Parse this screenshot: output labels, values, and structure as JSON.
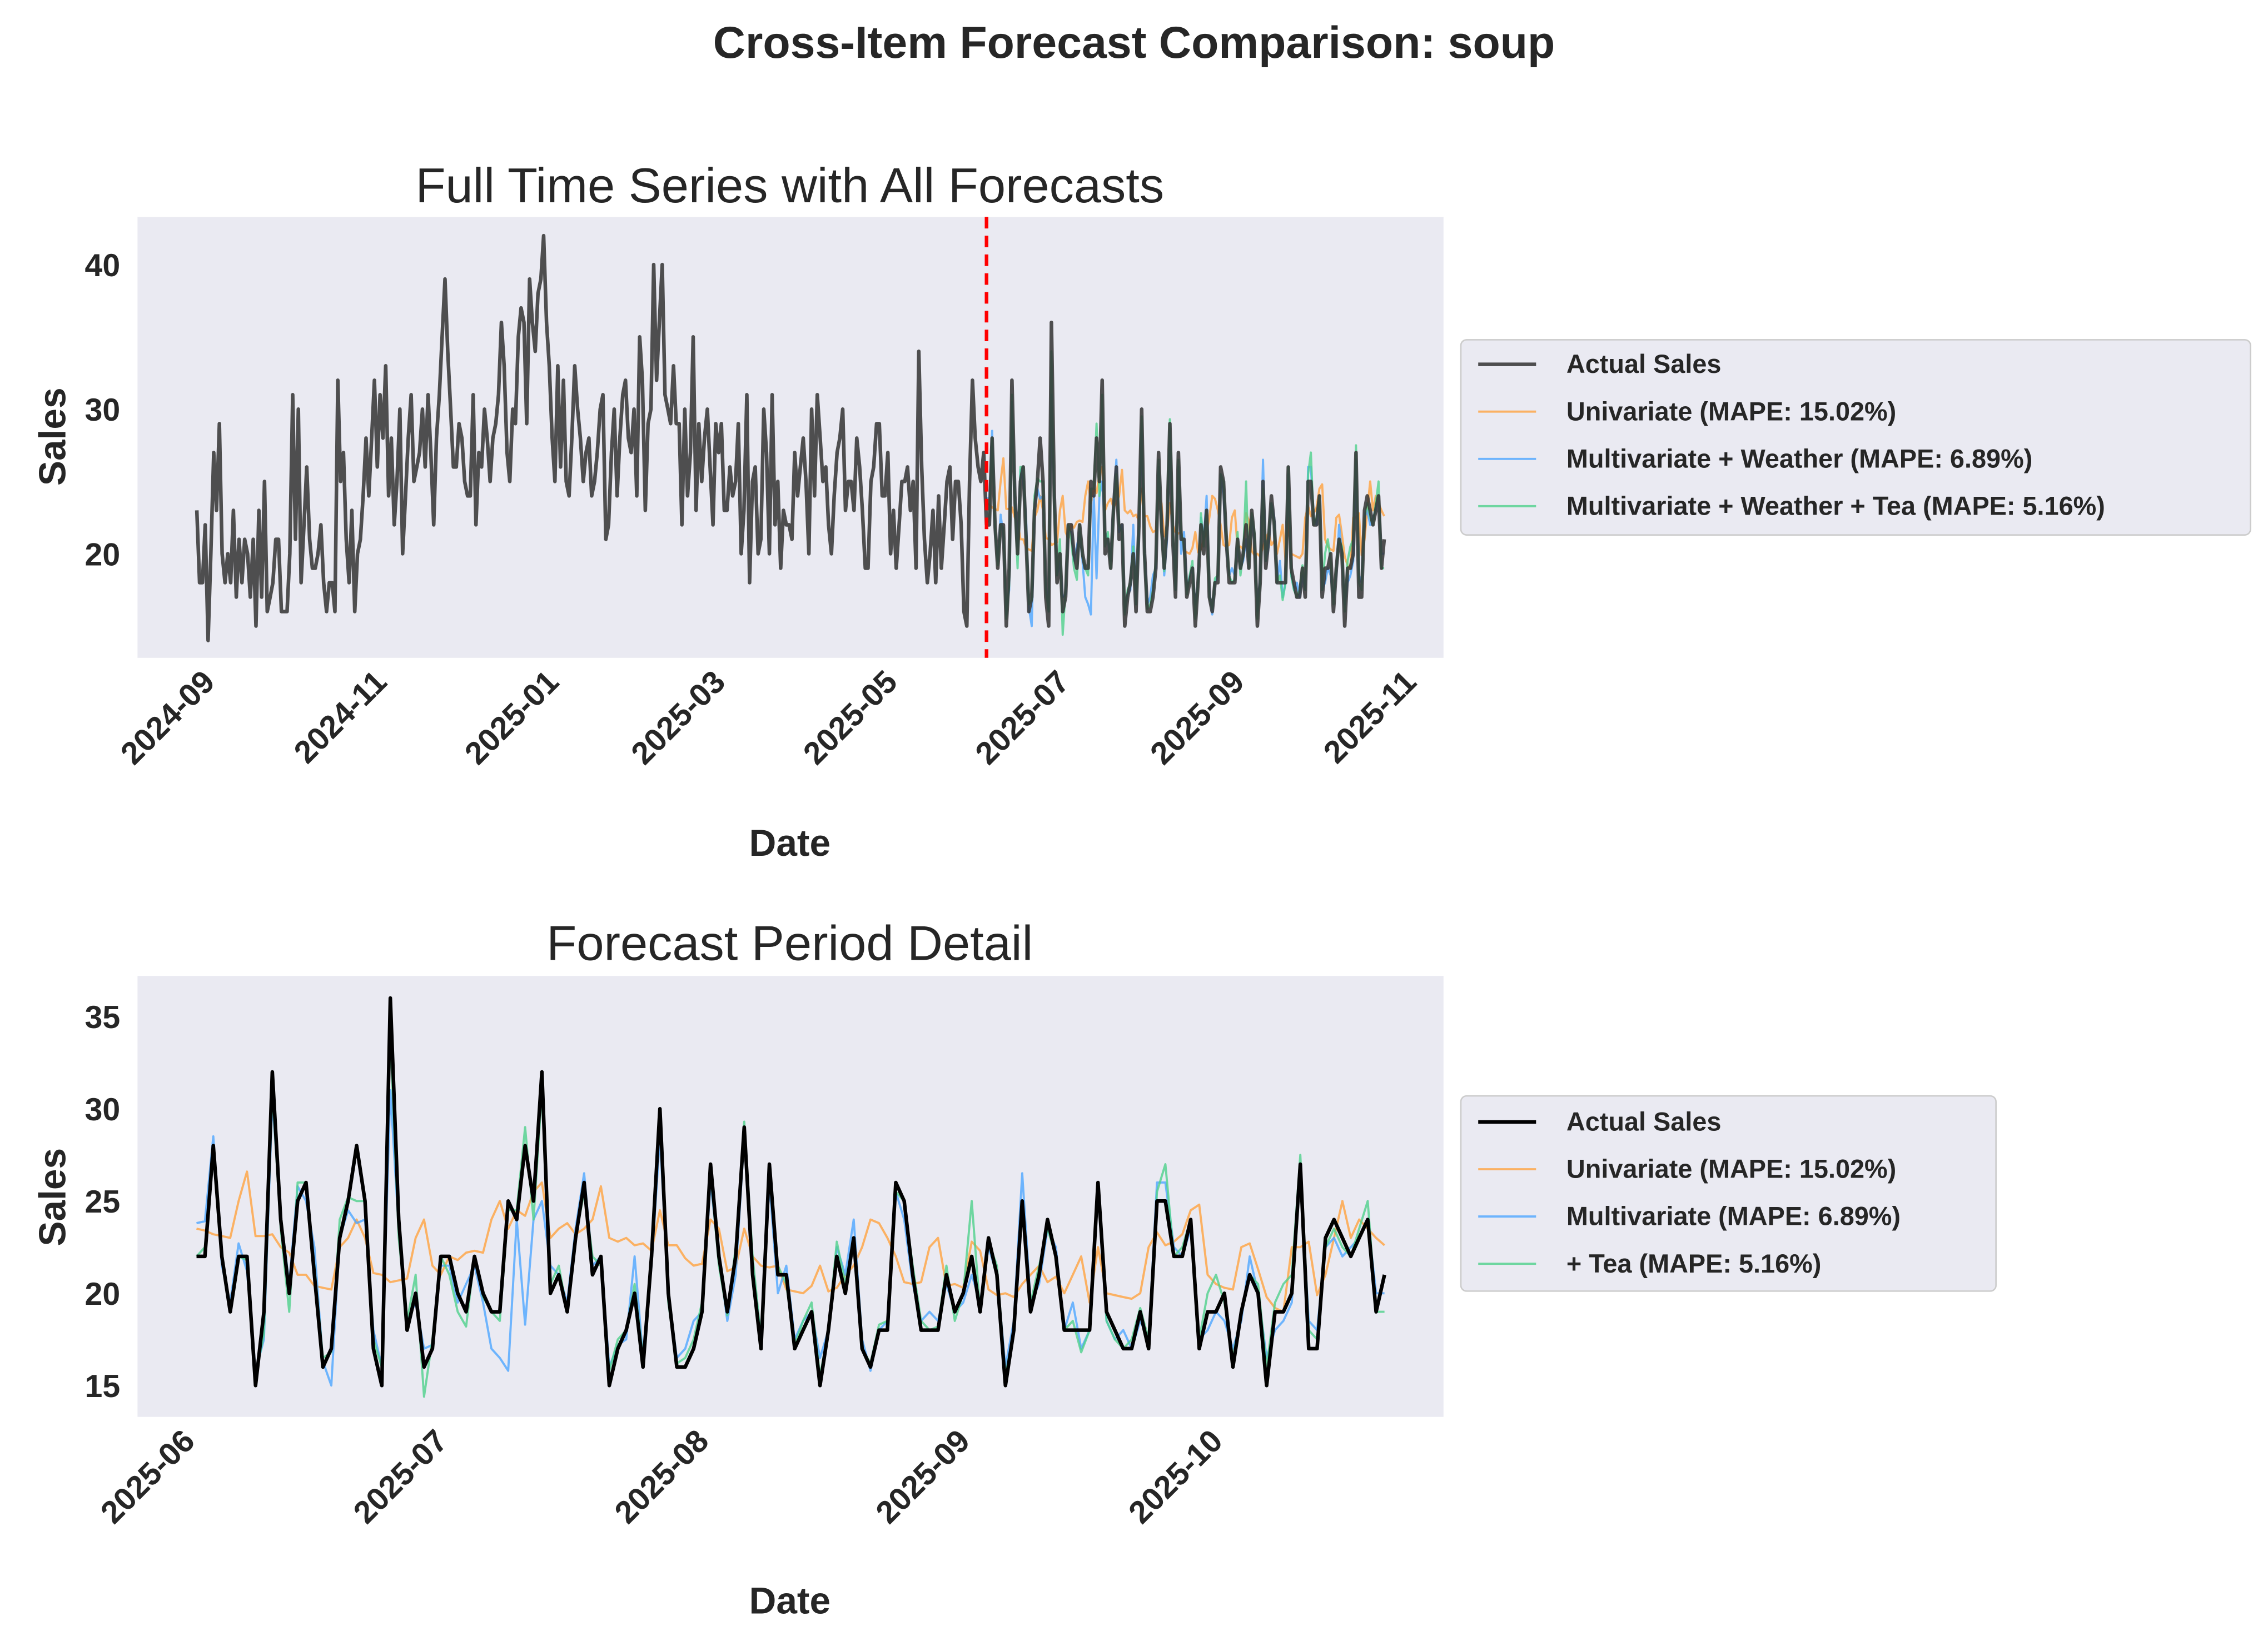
{
  "title": "Cross-Item Forecast Comparison: soup",
  "colors": {
    "actual_top": "#333333",
    "actual_bottom": "#000000",
    "univariate": "#FFA33F",
    "multivariate": "#4DA6FF",
    "tea": "#4FD18B",
    "forecast_start_line": "#FF0000",
    "plot_bg": "#EAEAF2"
  },
  "series_data": {
    "history_start": "2024-08-25",
    "history_actual": [
      23,
      18,
      18,
      22,
      14,
      20,
      27,
      23,
      29,
      20,
      18,
      20,
      18,
      23,
      17,
      21,
      18,
      21,
      20,
      17,
      21,
      15,
      23,
      17,
      25,
      16,
      17,
      18,
      21,
      21,
      16,
      16,
      16,
      20,
      31,
      21,
      30,
      18,
      22,
      26,
      21,
      19,
      19,
      20,
      22,
      18,
      16,
      18,
      18,
      16,
      32,
      25,
      27,
      21,
      18,
      23,
      16,
      20,
      21,
      24,
      28,
      24,
      28,
      32,
      26,
      31,
      28,
      33,
      24,
      28,
      22,
      25,
      30,
      20,
      24,
      28,
      31,
      25,
      26,
      27,
      30,
      26,
      31,
      27,
      22,
      28,
      31,
      35,
      39,
      34,
      30,
      26,
      26,
      29,
      28,
      25,
      24,
      24,
      31,
      22,
      27,
      26,
      30,
      28,
      25,
      28,
      29,
      31,
      36,
      33,
      27,
      25,
      30,
      29,
      35,
      37,
      36,
      29,
      39,
      36,
      34,
      38,
      39,
      42,
      36,
      33,
      28,
      25,
      33,
      26,
      32,
      25,
      24,
      28,
      33,
      30,
      28,
      25,
      27,
      28,
      24,
      25,
      27,
      30,
      31,
      21,
      22,
      27,
      30,
      24,
      28,
      31,
      32,
      28,
      27,
      30,
      24,
      35,
      32,
      23,
      29,
      30,
      40,
      32,
      36,
      40,
      31,
      30,
      29,
      33,
      29,
      29,
      22,
      30,
      24,
      27,
      35,
      23,
      29,
      25,
      28,
      30,
      26,
      22,
      29,
      27,
      29,
      23,
      23,
      26,
      24,
      25,
      29,
      20,
      23,
      31,
      18,
      25,
      26,
      20,
      21,
      30,
      27,
      20,
      31,
      22,
      25,
      19,
      23,
      22,
      22,
      21,
      27,
      24,
      26,
      28,
      25,
      20,
      30,
      24,
      31,
      28,
      25,
      26,
      22,
      20,
      24,
      27,
      28,
      30,
      23,
      25,
      25,
      23,
      28,
      26,
      23,
      19,
      19,
      25,
      26,
      29,
      29,
      24,
      24,
      27,
      20,
      23,
      19,
      22,
      25,
      25,
      26,
      23,
      25,
      19,
      34,
      26,
      21,
      18,
      20,
      23,
      18,
      24,
      19,
      22,
      25,
      26,
      21,
      25,
      25,
      22,
      16,
      15,
      25,
      32,
      28,
      26,
      25,
      27
    ],
    "forecast_start": "2025-06-01",
    "forecast_actual": [
      22,
      22,
      28,
      22,
      19,
      22,
      22,
      15,
      19,
      32,
      24,
      20,
      25,
      26,
      21,
      16,
      17,
      23,
      25,
      28,
      25,
      17,
      15,
      36,
      24,
      18,
      20,
      16,
      17,
      22,
      22,
      20,
      19,
      22,
      20,
      19,
      19,
      25,
      24,
      28,
      25,
      32,
      20,
      21,
      19,
      23,
      26,
      21,
      22,
      15,
      17,
      18,
      20,
      16,
      22,
      30,
      20,
      16,
      16,
      17,
      19,
      27,
      22,
      19,
      22,
      29,
      21,
      17,
      27,
      21,
      21,
      17,
      18,
      19,
      15,
      18,
      22,
      20,
      23,
      17,
      16,
      18,
      18,
      26,
      25,
      21,
      18,
      18,
      18,
      21,
      19,
      20,
      22,
      19,
      23,
      21,
      15,
      18,
      25,
      19,
      21,
      24,
      22,
      18,
      18,
      18,
      18,
      26,
      19,
      18,
      17,
      17,
      19,
      17,
      25,
      25,
      22,
      22,
      24,
      17,
      19,
      19,
      20,
      16,
      19,
      21,
      20,
      15,
      19,
      19,
      20,
      27,
      17,
      17,
      23,
      24,
      23,
      22,
      23,
      24,
      19,
      21
    ],
    "univariate": [
      23.5,
      23.4,
      23.2,
      23.1,
      23.0,
      25.0,
      26.6,
      23.1,
      23.1,
      23.2,
      22.5,
      22.2,
      21.0,
      21.0,
      20.4,
      20.3,
      20.2,
      22.5,
      23.0,
      24.0,
      23.0,
      21.1,
      21.0,
      20.6,
      20.7,
      20.8,
      23.0,
      24.0,
      21.5,
      21.0,
      22.0,
      21.8,
      22.2,
      22.3,
      22.2,
      24.0,
      25.0,
      23.5,
      24.5,
      24.2,
      25.5,
      26.0,
      23.0,
      23.5,
      23.8,
      23.2,
      23.5,
      24.0,
      25.8,
      23.0,
      22.8,
      23.0,
      22.6,
      22.7,
      22.3,
      24.5,
      22.6,
      22.6,
      21.9,
      21.5,
      21.6,
      24.0,
      23.5,
      21.2,
      21.4,
      23.5,
      22.0,
      21.5,
      21.4,
      21.5,
      20.2,
      20.1,
      20.0,
      20.4,
      21.5,
      20.1,
      20.3,
      21.0,
      21.5,
      22.5,
      24.0,
      23.8,
      23.0,
      22.0,
      20.6,
      20.5,
      20.6,
      22.5,
      23.0,
      20.4,
      20.5,
      20.3,
      22.8,
      22.3,
      20.2,
      19.9,
      20.0,
      19.8,
      20.5,
      21.0,
      21.5,
      20.6,
      20.9,
      20.0,
      21.0,
      22.0,
      19.5,
      22.5,
      20.0,
      19.9,
      19.8,
      19.7,
      20.0,
      22.5,
      23.3,
      22.6,
      22.8,
      23.2,
      24.5,
      24.8,
      21.0,
      20.5,
      20.3,
      20.2,
      22.5,
      22.7,
      21.3,
      19.8,
      19.2,
      19.0,
      22.5,
      22.5,
      22.8,
      19.9,
      21.0,
      23.0,
      25.0,
      23.0,
      24.0,
      23.5,
      23.0,
      22.6
    ],
    "multivariate": [
      23.8,
      23.9,
      28.5,
      21.5,
      19.5,
      22.7,
      21.2,
      15.8,
      17.5,
      30.5,
      24.2,
      20.5,
      25.8,
      25.0,
      22.5,
      16.3,
      15.0,
      23.0,
      24.5,
      23.8,
      24.0,
      18.0,
      16.0,
      31.0,
      23.5,
      18.5,
      19.5,
      17.0,
      17.2,
      21.5,
      21.5,
      19.5,
      20.5,
      21.5,
      19.5,
      17.0,
      16.5,
      15.8,
      24.0,
      18.3,
      24.0,
      25.0,
      21.5,
      21.0,
      19.5,
      23.5,
      26.5,
      21.5,
      22.0,
      16.0,
      17.2,
      17.5,
      22.0,
      16.5,
      21.5,
      28.5,
      20.0,
      16.5,
      17.0,
      18.5,
      19.0,
      26.0,
      22.0,
      18.5,
      21.0,
      28.5,
      21.5,
      17.5,
      26.0,
      20.0,
      21.5,
      17.5,
      18.5,
      19.0,
      16.5,
      18.0,
      22.5,
      21.0,
      24.0,
      17.5,
      15.8,
      18.0,
      18.5,
      25.5,
      24.0,
      20.5,
      18.5,
      19.0,
      18.5,
      20.5,
      19.0,
      19.5,
      21.0,
      19.5,
      22.5,
      21.0,
      16.0,
      18.5,
      26.5,
      19.5,
      20.5,
      23.5,
      22.5,
      18.0,
      19.5,
      17.0,
      18.0,
      25.5,
      18.5,
      17.5,
      18.0,
      17.0,
      18.5,
      17.5,
      26.0,
      26.0,
      22.5,
      22.0,
      23.5,
      17.5,
      18.0,
      19.0,
      18.5,
      17.0,
      18.5,
      22.0,
      20.0,
      16.5,
      18.0,
      18.5,
      19.5,
      26.5,
      18.5,
      18.0,
      22.5,
      23.0,
      22.0,
      22.5,
      23.0,
      24.0,
      20.0,
      20.0
    ],
    "tea": [
      22.0,
      22.5,
      28.0,
      21.8,
      19.2,
      22.0,
      21.8,
      15.5,
      17.8,
      31.0,
      23.5,
      19.0,
      26.0,
      26.0,
      21.5,
      16.5,
      16.8,
      24.0,
      25.2,
      25.0,
      25.0,
      17.5,
      16.0,
      34.0,
      23.0,
      18.5,
      21.0,
      14.4,
      17.5,
      22.0,
      21.0,
      19.0,
      18.2,
      22.0,
      19.8,
      19.0,
      18.5,
      24.5,
      24.5,
      29.0,
      24.0,
      31.0,
      20.5,
      21.5,
      19.0,
      23.0,
      25.5,
      22.0,
      21.5,
      15.8,
      17.5,
      18.0,
      20.5,
      16.5,
      22.0,
      29.5,
      19.5,
      16.2,
      16.5,
      17.5,
      19.5,
      26.5,
      21.5,
      18.8,
      22.5,
      29.3,
      22.0,
      17.5,
      26.5,
      21.5,
      20.5,
      17.2,
      18.5,
      19.5,
      15.5,
      18.0,
      22.8,
      20.5,
      23.0,
      17.0,
      16.2,
      18.3,
      18.5,
      25.5,
      25.0,
      21.5,
      18.5,
      18.0,
      18.2,
      21.5,
      18.5,
      20.0,
      25.0,
      19.0,
      22.8,
      21.5,
      15.5,
      18.0,
      24.5,
      19.5,
      21.5,
      23.5,
      22.0,
      18.0,
      18.5,
      16.8,
      18.0,
      26.0,
      18.5,
      17.5,
      17.0,
      17.5,
      19.2,
      17.5,
      25.5,
      27.0,
      22.0,
      22.5,
      24.0,
      17.5,
      20.0,
      21.0,
      19.5,
      16.5,
      19.0,
      21.0,
      20.5,
      16.0,
      19.5,
      20.5,
      21.0,
      27.5,
      18.0,
      17.5,
      22.5,
      23.5,
      22.5,
      22.0,
      23.5,
      25.0,
      19.0,
      19.0
    ]
  },
  "chart_data": [
    {
      "type": "line",
      "title": "Full Time Series with All Forecasts",
      "xlabel": "Date",
      "ylabel": "Sales",
      "xlim": [
        "2024-08-04",
        "2025-11-10"
      ],
      "ylim": [
        12.8,
        43.3
      ],
      "xticks": [
        {
          "date": "2024-09-01",
          "label": "2024-09"
        },
        {
          "date": "2024-11-01",
          "label": "2024-11"
        },
        {
          "date": "2025-01-01",
          "label": "2025-01"
        },
        {
          "date": "2025-03-01",
          "label": "2025-03"
        },
        {
          "date": "2025-05-01",
          "label": "2025-05"
        },
        {
          "date": "2025-07-01",
          "label": "2025-07"
        },
        {
          "date": "2025-09-01",
          "label": "2025-09"
        },
        {
          "date": "2025-11-01",
          "label": "2025-11"
        }
      ],
      "yticks": [
        20,
        30,
        40
      ],
      "grid": false,
      "legend_placement": "right",
      "vline": {
        "date": "2025-06-01",
        "style": "dashed"
      },
      "series": [
        {
          "key": "actual",
          "name": "Actual Sales"
        },
        {
          "key": "univariate",
          "name": "Univariate (MAPE: 15.02%)"
        },
        {
          "key": "multivariate",
          "name": "Multivariate + Weather (MAPE: 6.89%)"
        },
        {
          "key": "tea",
          "name": "Multivariate + Weather + Tea (MAPE: 5.16%)"
        }
      ]
    },
    {
      "type": "line",
      "title": "Forecast Period Detail",
      "xlabel": "Date",
      "ylabel": "Sales",
      "xlim": [
        "2025-05-25",
        "2025-10-27"
      ],
      "ylim": [
        13.3,
        37.2
      ],
      "xticks": [
        {
          "date": "2025-06-01",
          "label": "2025-06"
        },
        {
          "date": "2025-07-01",
          "label": "2025-07"
        },
        {
          "date": "2025-08-01",
          "label": "2025-08"
        },
        {
          "date": "2025-09-01",
          "label": "2025-09"
        },
        {
          "date": "2025-10-01",
          "label": "2025-10"
        }
      ],
      "yticks": [
        15,
        20,
        25,
        30,
        35
      ],
      "grid": false,
      "legend_placement": "right",
      "series": [
        {
          "key": "actual",
          "name": "Actual Sales"
        },
        {
          "key": "univariate",
          "name": "Univariate (MAPE: 15.02%)"
        },
        {
          "key": "multivariate",
          "name": "Multivariate (MAPE: 6.89%)"
        },
        {
          "key": "tea",
          "name": "+ Tea (MAPE: 5.16%)"
        }
      ]
    }
  ]
}
